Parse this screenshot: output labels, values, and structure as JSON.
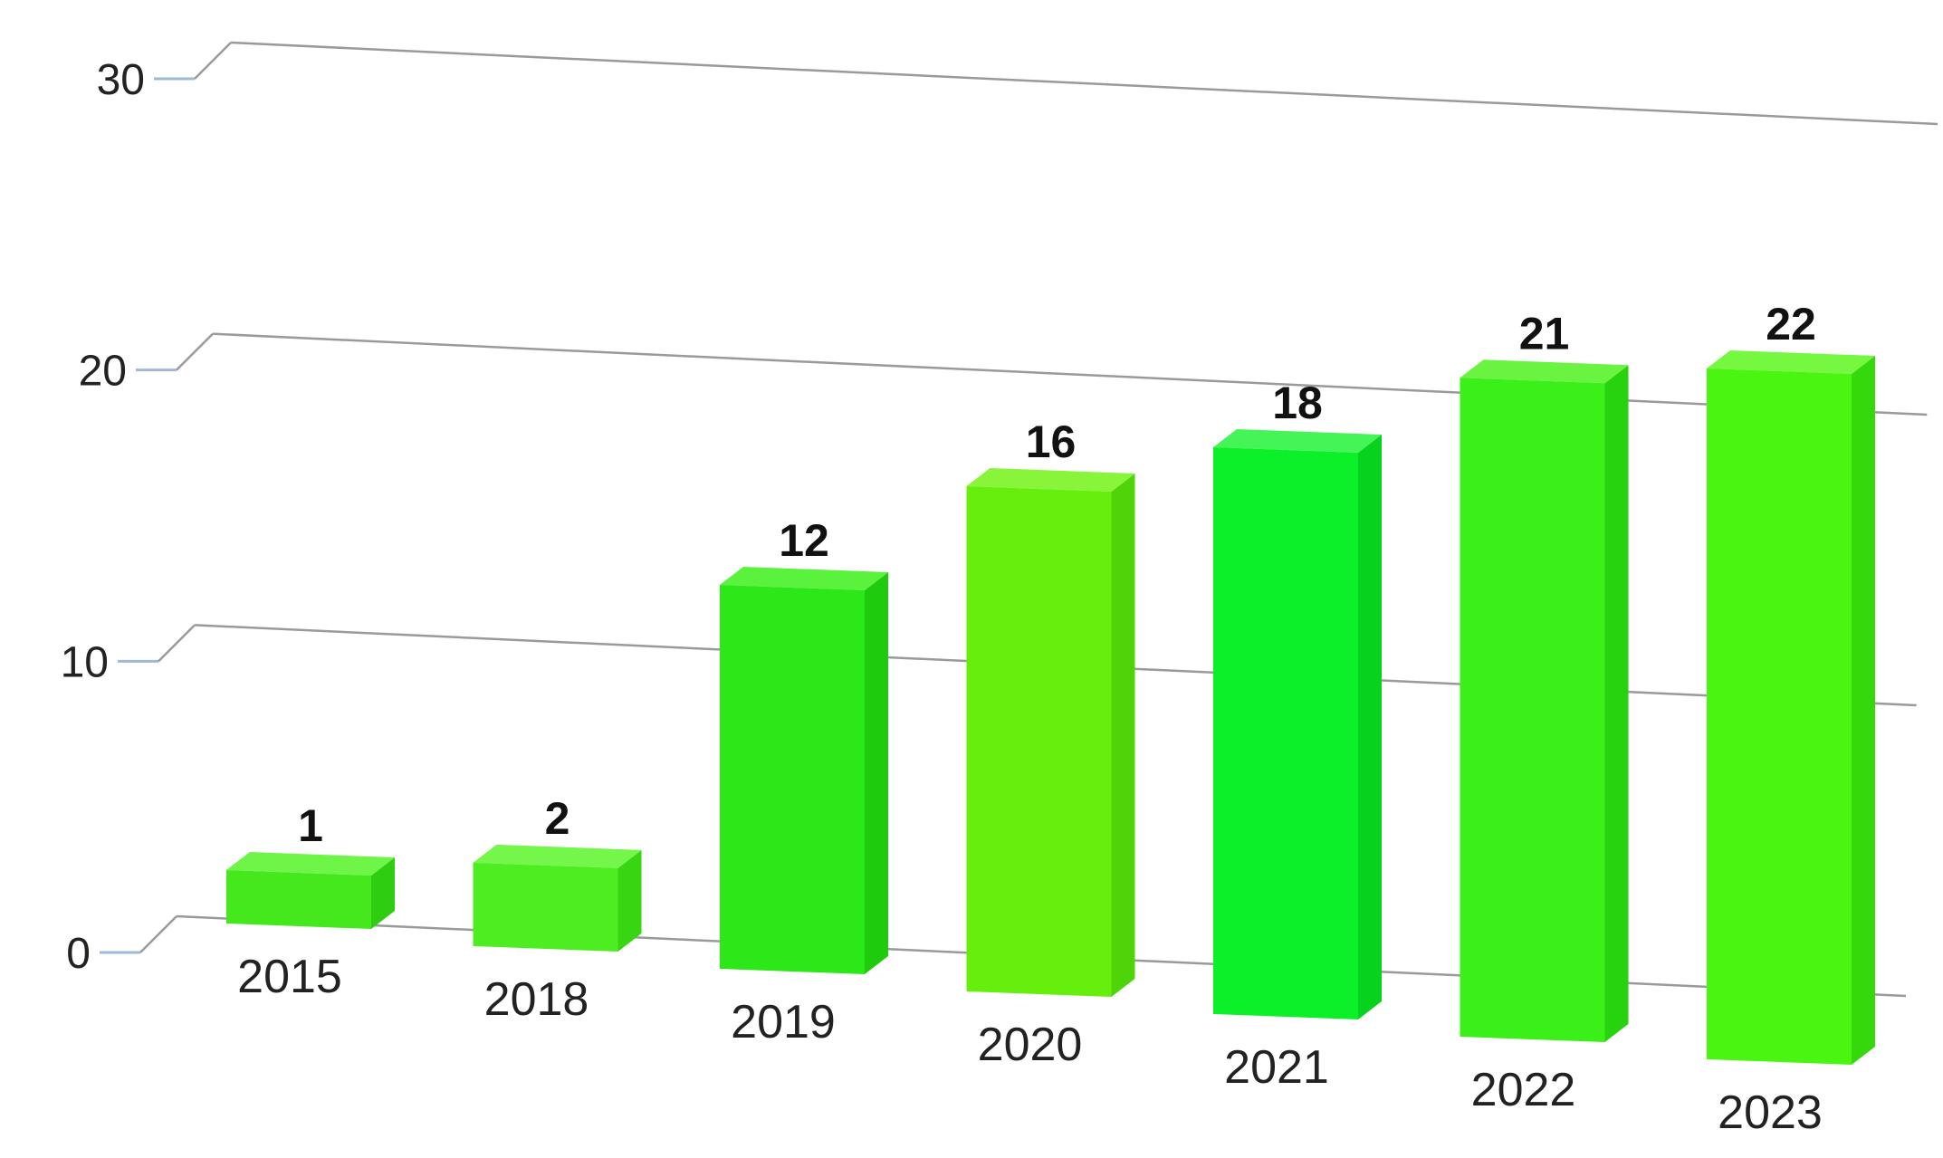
{
  "chart_data": {
    "type": "bar",
    "style": "3d",
    "categories": [
      "2015",
      "2018",
      "2019",
      "2020",
      "2021",
      "2022",
      "2023"
    ],
    "values": [
      1,
      2,
      12,
      16,
      18,
      21,
      22
    ],
    "title": "",
    "xlabel": "",
    "ylabel": "",
    "ylim": [
      0,
      30
    ],
    "yticks": [
      0,
      10,
      20,
      30
    ],
    "grid": true,
    "legend": "none",
    "data_labels": true,
    "colors": {
      "bar_front": [
        "#45e81d",
        "#4ded22",
        "#2de818",
        "#66ef0c",
        "#0cf02a",
        "#3bf018",
        "#4af512"
      ],
      "bar_side": [
        "#2fcd0f",
        "#37d512",
        "#1fcc0d",
        "#4fd40a",
        "#07d21d",
        "#27d30e",
        "#35d90b"
      ],
      "bar_top": [
        "#6ff448",
        "#74f64a",
        "#5bf23e",
        "#88f53a",
        "#45f557",
        "#6af441",
        "#76f840"
      ],
      "gridline": "#9a9a9a",
      "axis_tick": "#9fb8d6",
      "text": "#222222"
    }
  }
}
